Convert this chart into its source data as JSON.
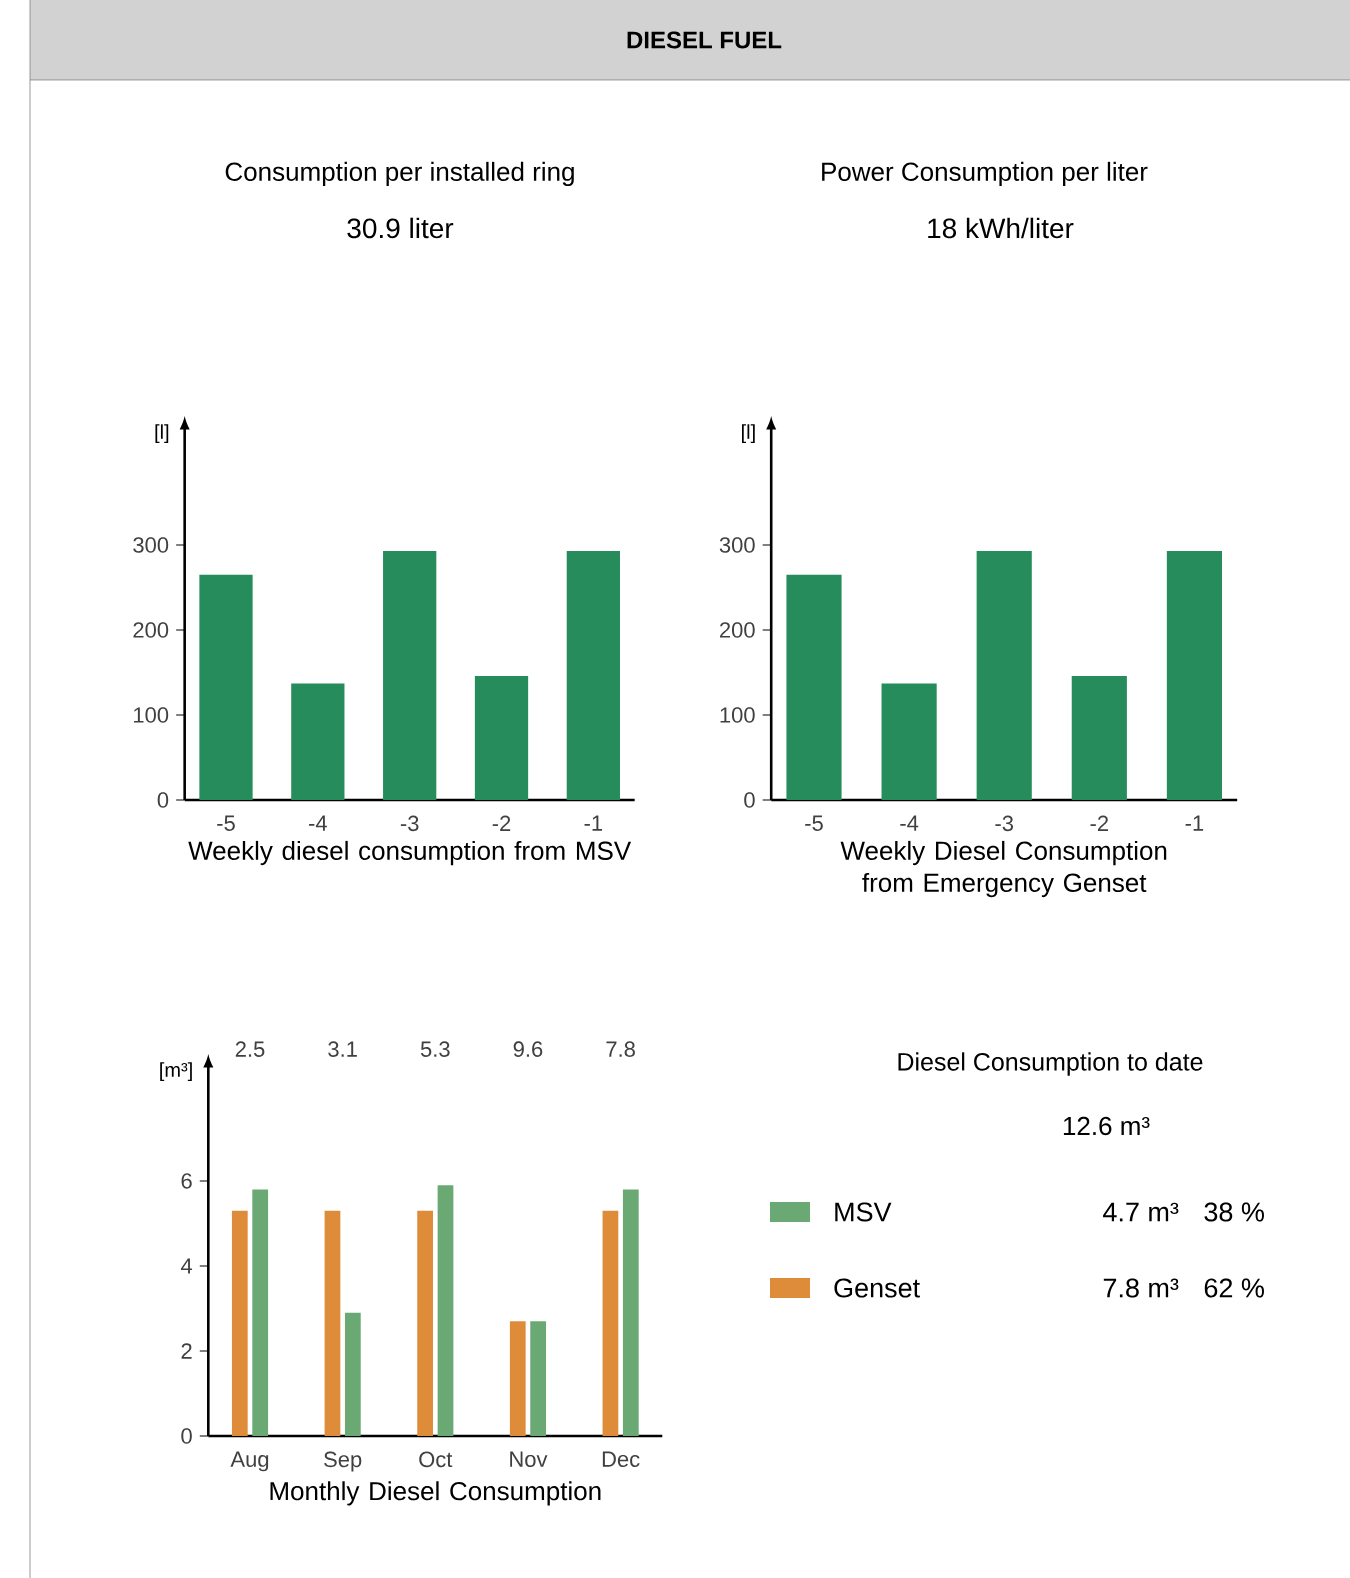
{
  "chart_data": [
    {
      "type": "other",
      "title": "DIESEL FUEL"
    },
    {
      "type": "other",
      "title": "Consumption per installed ring",
      "annotations": [
        "30.9 liter"
      ]
    },
    {
      "type": "other",
      "title": "Power Consumption per liter",
      "annotations": [
        "18 kWh/liter"
      ]
    },
    {
      "type": "bar",
      "categories": [
        "-5",
        "-4",
        "-3",
        "-2",
        "-1"
      ],
      "values": [
        265,
        137,
        293,
        146,
        293
      ],
      "color": "#278c5c",
      "ylabel": "[l]",
      "xlabel": "Weekly diesel consumption from MSV",
      "ylim": [
        0,
        440
      ],
      "yticks": [
        0,
        100,
        200,
        300
      ]
    },
    {
      "type": "bar",
      "categories": [
        "-5",
        "-4",
        "-3",
        "-2",
        "-1"
      ],
      "values": [
        265,
        137,
        293,
        146,
        293
      ],
      "color": "#278c5c",
      "ylabel": "[l]",
      "xlabel": "Weekly Diesel Consumption from Emergency Genset",
      "ylim": [
        0,
        440
      ],
      "yticks": [
        0,
        100,
        200,
        300
      ]
    },
    {
      "type": "bar",
      "categories": [
        "Aug",
        "Sep",
        "Oct",
        "Nov",
        "Dec"
      ],
      "series": [
        {
          "name": "Genset",
          "color": "#df8c3a",
          "values": [
            5.3,
            5.3,
            5.3,
            2.7,
            5.3
          ]
        },
        {
          "name": "MSV",
          "color": "#6aa874",
          "values": [
            5.8,
            2.9,
            5.9,
            2.7,
            5.8
          ]
        }
      ],
      "ylabel": "[m³]",
      "xlabel": "Monthly Diesel Consumption",
      "ylim": [
        0,
        8.75
      ],
      "yticks": [
        0,
        2,
        4,
        6
      ],
      "legend": "right",
      "annotations": [
        "2.5",
        "3.1",
        "5.3",
        "9.6",
        "7.8"
      ]
    },
    {
      "type": "other",
      "title": "Diesel Consumption to date",
      "annotations": [
        "12.6 m³",
        "4.7 m³",
        "38 %",
        "7.8 m³",
        "62 %"
      ]
    }
  ]
}
